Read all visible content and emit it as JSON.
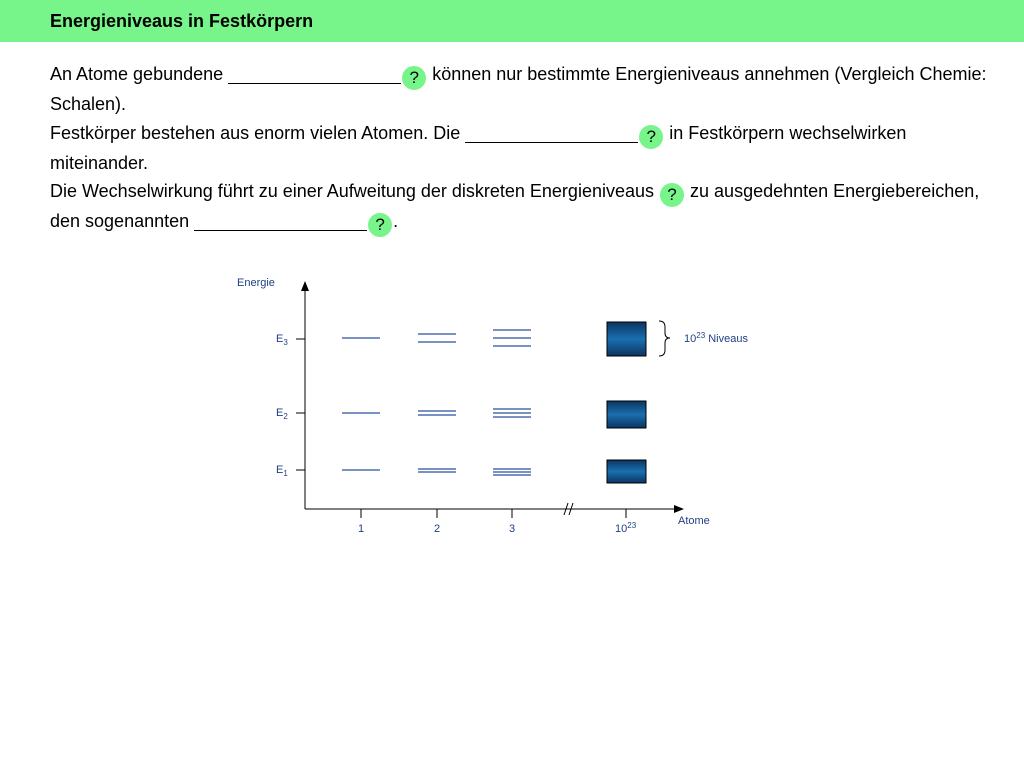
{
  "header": {
    "title": "Energieniveaus in Festkörpern"
  },
  "text": {
    "p1_a": "An Atome gebundene",
    "p1_b": "können nur bestimmte Energieniveaus annehmen (Vergleich Chemie: Schalen).",
    "p2_a": "Festkörper bestehen aus enorm vielen Atomen. Die",
    "p2_b": "in Festkörpern wechselwirken miteinander.",
    "p3_a": "Die Wechselwirkung führt zu einer Aufweitung der diskreten Energieniveaus",
    "p3_b": "zu ausgedehnten Energiebereichen, den sogenannten",
    "p3_c": ".",
    "hint_label": "?"
  },
  "diagram": {
    "y_axis_label": "Energie",
    "x_axis_label": "Atome",
    "levels": [
      {
        "base": "E",
        "sub": "3"
      },
      {
        "base": "E",
        "sub": "2"
      },
      {
        "base": "E",
        "sub": "1"
      }
    ],
    "x_ticks": [
      {
        "base": "1",
        "sup": ""
      },
      {
        "base": "2",
        "sup": ""
      },
      {
        "base": "3",
        "sup": ""
      },
      {
        "base": "10",
        "sup": "23"
      }
    ],
    "band_annotation": {
      "base": "10",
      "sup": "23",
      "rest": " Niveaus"
    },
    "colors": {
      "line": "#2b4fa0",
      "band_dark": "#0b3560",
      "band_light": "#1a6fb0",
      "axis": "#000000"
    }
  }
}
